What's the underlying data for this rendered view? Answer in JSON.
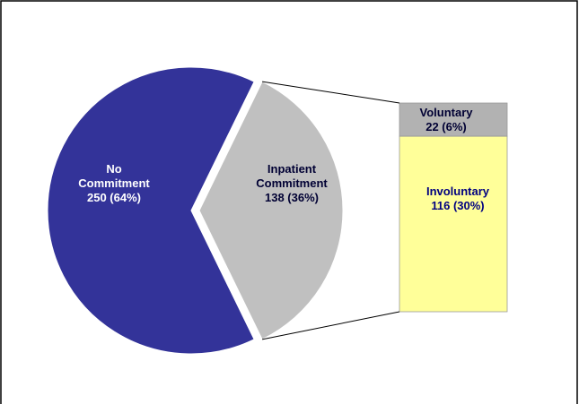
{
  "chart_data": {
    "type": "pie-of-bar",
    "categories": [
      "No Commitment",
      "Inpatient Commitment"
    ],
    "values": [
      250,
      138
    ],
    "value_labels": [
      "250 (64%)",
      "138 (36%)"
    ],
    "colors": [
      "#333399",
      "#c0c0c0"
    ],
    "bar": {
      "categories": [
        "Voluntary",
        "Involuntary"
      ],
      "values": [
        22,
        116
      ],
      "value_labels": [
        "22 (6%)",
        "116 (30%)"
      ],
      "colors": [
        "#b2b2b2",
        "#ffff99"
      ]
    }
  }
}
